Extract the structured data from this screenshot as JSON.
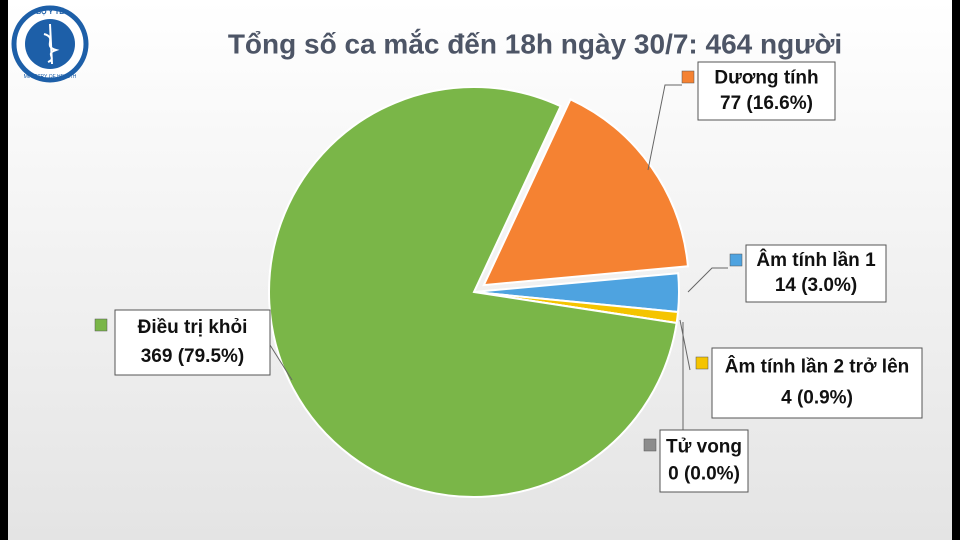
{
  "logo": {
    "top": "BỘ Y TẾ",
    "bottom": "MINISTRY OF HEALTH"
  },
  "chart_data": {
    "type": "pie",
    "title": "Tổng số ca mắc đến 18h ngày 30/7: 464 người",
    "categories": [
      "Dương tính",
      "Âm tính lần 1",
      "Âm tính lần 2 trở lên",
      "Tử vong",
      "Điều trị khỏi"
    ],
    "values": [
      77,
      14,
      4,
      0,
      369
    ],
    "value_labels": [
      "77 (16.6%)",
      "14 (3.0%)",
      "4 (0.9%)",
      "0 (0.0%)",
      "369 (79.5%)"
    ],
    "colors": [
      "#f58232",
      "#4ea3e0",
      "#f5c400",
      "#8c8c8c",
      "#7ab648"
    ]
  }
}
